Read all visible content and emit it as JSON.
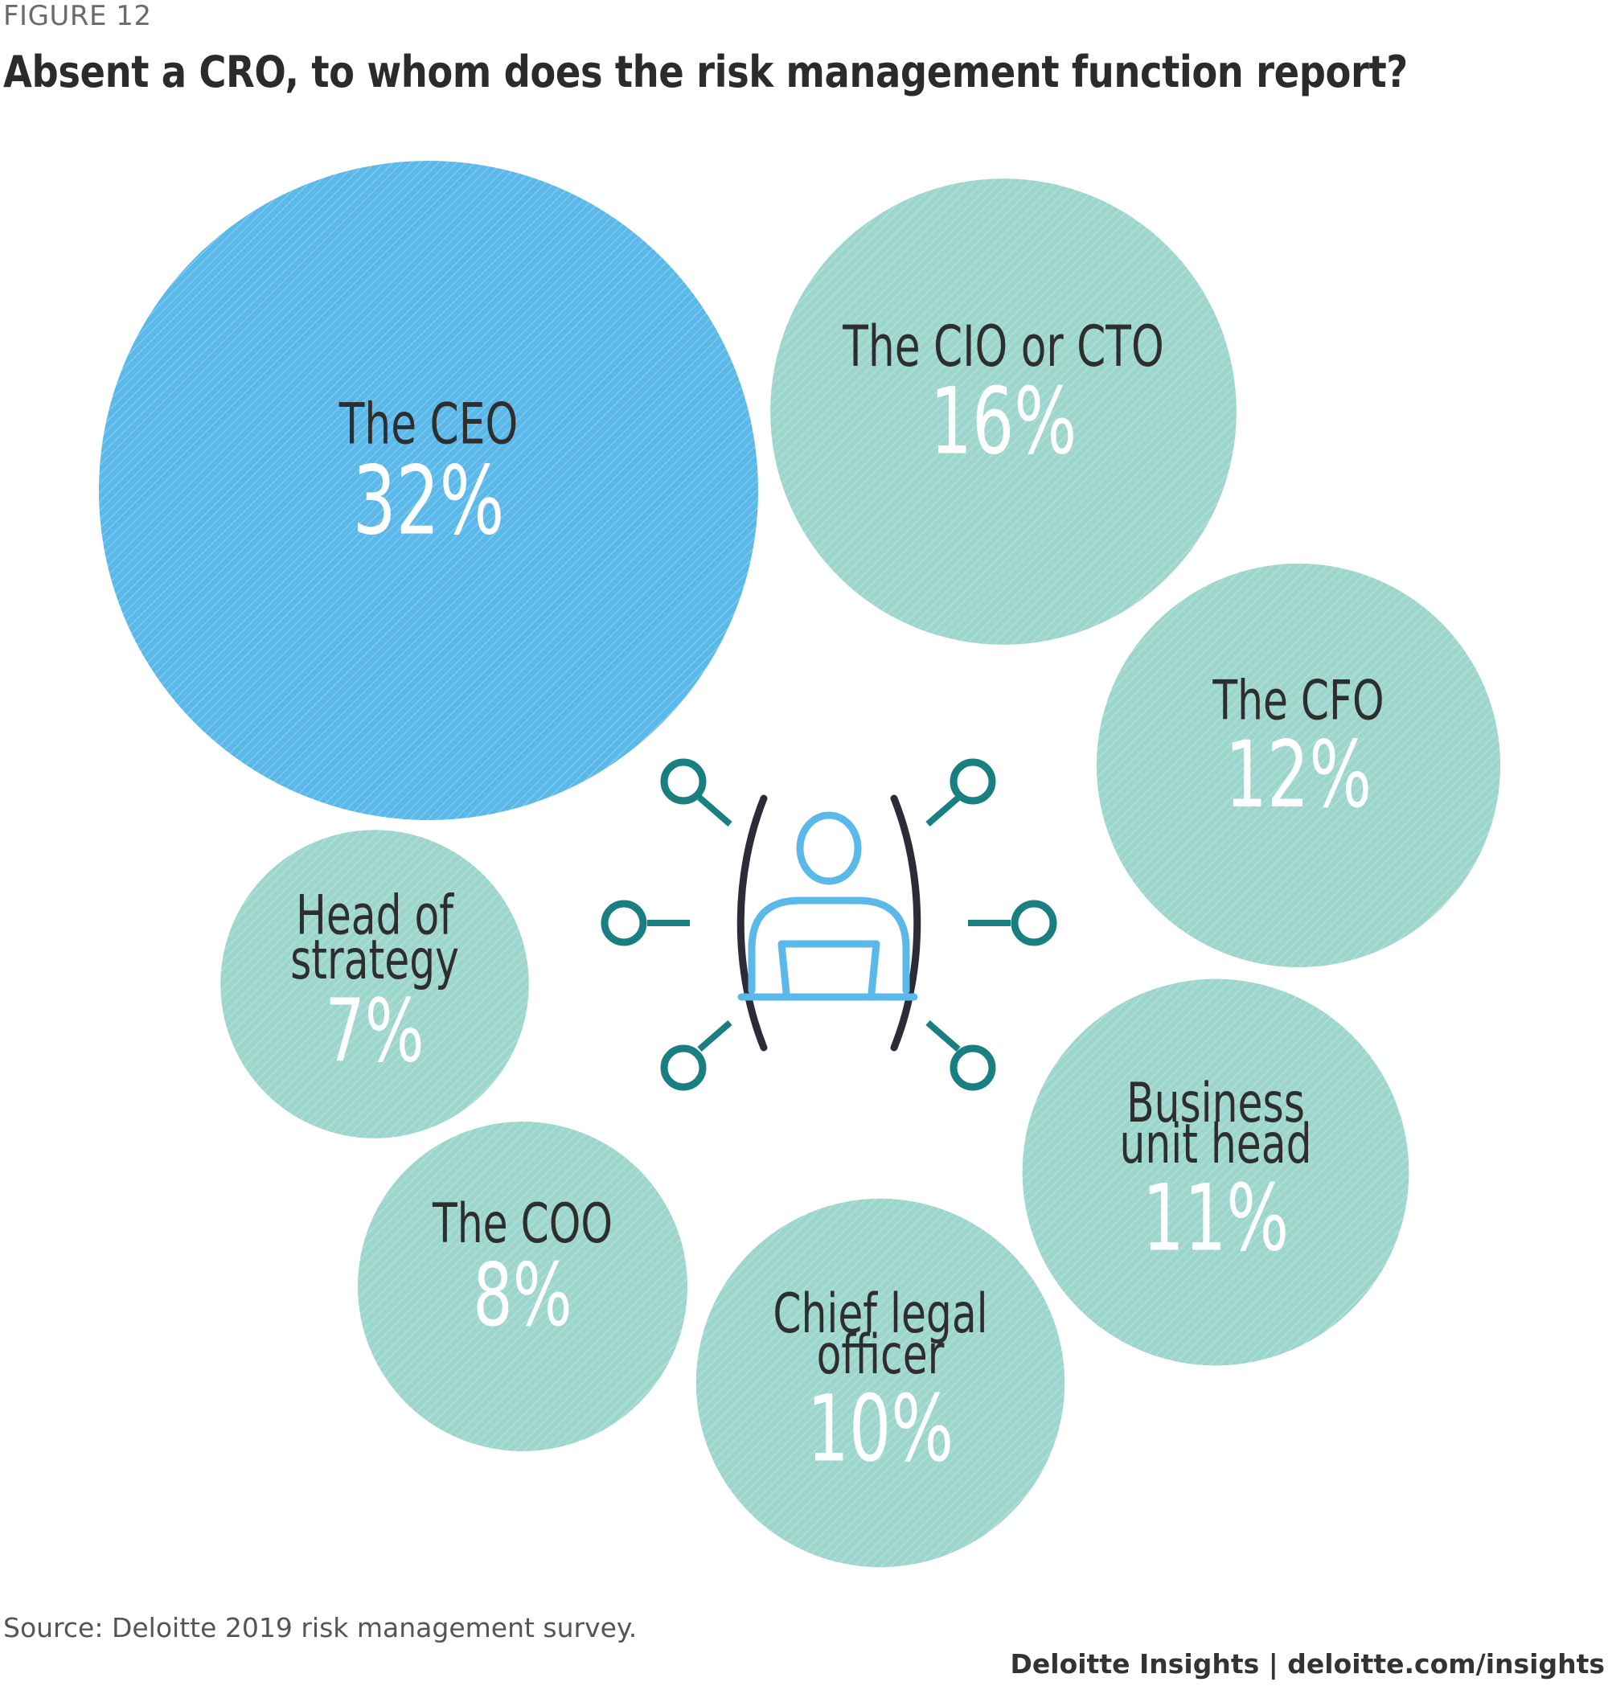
{
  "figure_label": "FIGURE 12",
  "source": "Source: Deloitte 2019 risk management survey.",
  "brand": {
    "name": "Deloitte Insights",
    "separator": " | ",
    "url": "deloitte.com/insights"
  },
  "colors": {
    "highlight": "#5BB9EA",
    "default": "#9DD6CD",
    "icon_person": "#5BB9EA",
    "icon_nodes": "#1A7F80",
    "icon_arcs": "#2C2C38"
  },
  "center_icon": "person-at-laptop-network-icon",
  "chart_data": {
    "type": "bubble",
    "title": "Absent a CRO, to whom does the risk management function report?",
    "unit": "%",
    "bubbles": [
      {
        "label": [
          "The CEO"
        ],
        "value": 32,
        "value_label": "32%",
        "highlight": true
      },
      {
        "label": [
          "The CIO or CTO"
        ],
        "value": 16,
        "value_label": "16%",
        "highlight": false
      },
      {
        "label": [
          "The CFO"
        ],
        "value": 12,
        "value_label": "12%",
        "highlight": false
      },
      {
        "label": [
          "Business",
          "unit head"
        ],
        "value": 11,
        "value_label": "11%",
        "highlight": false
      },
      {
        "label": [
          "Chief legal",
          "officer"
        ],
        "value": 10,
        "value_label": "10%",
        "highlight": false
      },
      {
        "label": [
          "The COO"
        ],
        "value": 8,
        "value_label": "8%",
        "highlight": false
      },
      {
        "label": [
          "Head of",
          "strategy"
        ],
        "value": 7,
        "value_label": "7%",
        "highlight": false
      }
    ]
  }
}
